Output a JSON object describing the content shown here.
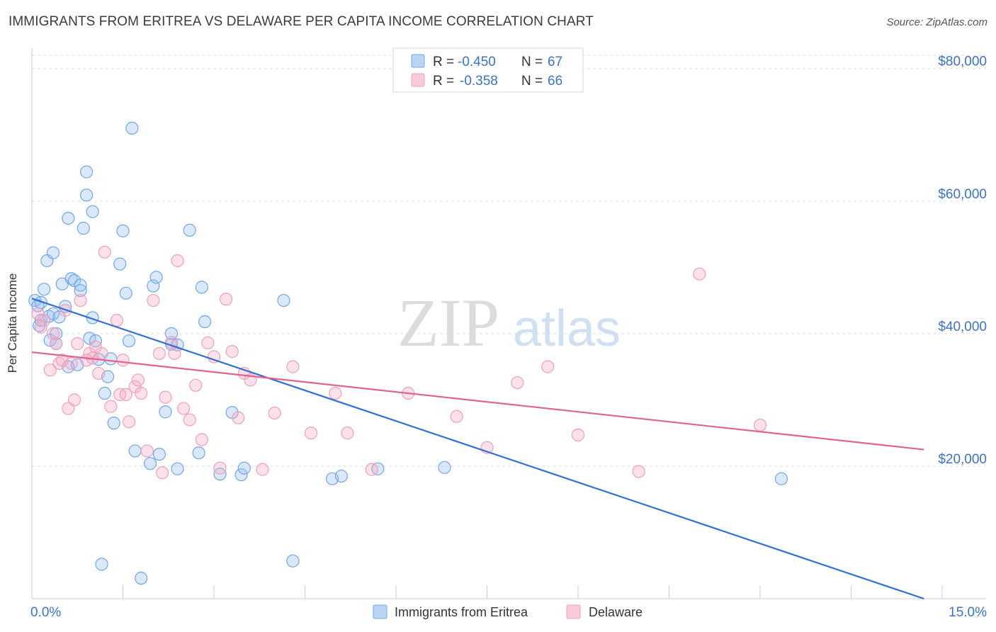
{
  "header": {
    "title": "IMMIGRANTS FROM ERITREA VS DELAWARE PER CAPITA INCOME CORRELATION CHART",
    "source": "Source: ZipAtlas.com"
  },
  "watermark": {
    "zip": "ZIP",
    "atlas": "atlas"
  },
  "legend_box": {
    "rows": [
      {
        "r_label": "R =",
        "r_value": "-0.450",
        "n_label": "N =",
        "n_value": "67",
        "color": "#6fa8ea"
      },
      {
        "r_label": "R =",
        "r_value": "-0.358",
        "n_label": "N =",
        "n_value": "66",
        "color": "#f0a0bb"
      }
    ]
  },
  "chart_data": {
    "type": "scatter",
    "title": "IMMIGRANTS FROM ERITREA VS DELAWARE PER CAPITA INCOME CORRELATION CHART",
    "xlabel": "",
    "ylabel": "Per Capita Income",
    "xlim": [
      0,
      15
    ],
    "ylim": [
      0,
      82000
    ],
    "x_tick_labels": [
      "0.0%",
      "15.0%"
    ],
    "y_ticks": [
      20000,
      40000,
      60000,
      80000
    ],
    "y_tick_labels": [
      "$20,000",
      "$40,000",
      "$60,000",
      "$80,000"
    ],
    "grid": true,
    "legend_position": "bottom-center",
    "series": [
      {
        "name": "Immigrants from Eritrea",
        "color": "#6fa8ea",
        "trend_color": "#3070d4",
        "trend": {
          "x": [
            0.0,
            14.7
          ],
          "y": [
            45300,
            0
          ]
        },
        "x": [
          0.05,
          0.1,
          0.12,
          0.15,
          0.2,
          0.25,
          0.28,
          0.3,
          0.35,
          0.35,
          0.4,
          0.4,
          0.45,
          0.5,
          0.55,
          0.6,
          0.6,
          0.65,
          0.7,
          0.75,
          0.8,
          0.8,
          0.85,
          0.9,
          0.9,
          0.95,
          1.0,
          1.0,
          1.05,
          1.1,
          1.15,
          1.2,
          1.25,
          1.3,
          1.35,
          1.45,
          1.5,
          1.55,
          1.6,
          1.65,
          1.7,
          1.8,
          1.95,
          2.0,
          2.05,
          2.1,
          2.2,
          2.3,
          2.3,
          2.4,
          2.4,
          2.6,
          2.75,
          2.8,
          2.85,
          3.1,
          3.3,
          3.45,
          3.5,
          4.15,
          4.3,
          4.95,
          5.1,
          5.7,
          6.8,
          12.35,
          0.15
        ],
        "y": [
          45000,
          44200,
          41200,
          42000,
          46700,
          51000,
          42600,
          39000,
          52200,
          43000,
          40000,
          38500,
          42500,
          47500,
          44100,
          57400,
          35000,
          48300,
          48000,
          35300,
          47300,
          46500,
          55900,
          64400,
          60900,
          39300,
          42400,
          58400,
          38900,
          36100,
          5200,
          31000,
          33500,
          36200,
          26500,
          50500,
          55500,
          46100,
          38900,
          71000,
          22300,
          3100,
          20400,
          47200,
          48500,
          21800,
          28200,
          38400,
          40000,
          19600,
          38300,
          55600,
          22000,
          47000,
          41800,
          18800,
          28100,
          18700,
          19700,
          45000,
          5700,
          18100,
          18500,
          19600,
          19800,
          18100,
          44700
        ]
      },
      {
        "name": "Delaware",
        "color": "#f0a0bb",
        "trend_color": "#e0628e",
        "trend": {
          "x": [
            0.0,
            14.7
          ],
          "y": [
            37200,
            22500
          ]
        },
        "x": [
          0.1,
          0.15,
          0.2,
          0.3,
          0.35,
          0.4,
          0.45,
          0.5,
          0.55,
          0.6,
          0.65,
          0.7,
          0.75,
          0.8,
          0.9,
          0.95,
          1.0,
          1.05,
          1.1,
          1.15,
          1.2,
          1.3,
          1.4,
          1.45,
          1.5,
          1.55,
          1.6,
          1.7,
          1.75,
          1.8,
          1.9,
          2.0,
          2.1,
          2.15,
          2.2,
          2.3,
          2.35,
          2.4,
          2.5,
          2.6,
          2.7,
          2.8,
          2.9,
          3.0,
          3.1,
          3.2,
          3.3,
          3.4,
          3.5,
          3.6,
          3.8,
          4.0,
          4.3,
          4.6,
          5.0,
          5.2,
          5.6,
          6.2,
          7.0,
          7.5,
          8.0,
          8.5,
          9.0,
          10.0,
          11.0,
          12.0
        ],
        "y": [
          43000,
          41000,
          42000,
          34500,
          40000,
          38500,
          35500,
          36000,
          43500,
          28700,
          35500,
          30000,
          38500,
          45000,
          36000,
          37000,
          36300,
          38000,
          34000,
          37000,
          52300,
          29000,
          42000,
          30800,
          36000,
          30800,
          26700,
          32000,
          33000,
          31000,
          22300,
          45000,
          37000,
          19000,
          30400,
          38700,
          37000,
          51000,
          28700,
          27000,
          32200,
          24000,
          38600,
          36500,
          19700,
          45200,
          37300,
          27300,
          34000,
          33000,
          19500,
          28000,
          35000,
          25000,
          31000,
          25000,
          19500,
          31000,
          27500,
          22800,
          32600,
          35000,
          24700,
          19200,
          49000,
          26200
        ]
      }
    ]
  },
  "bottom_legend": {
    "items": [
      {
        "label": "Immigrants from Eritrea",
        "color": "#6fa8ea"
      },
      {
        "label": "Delaware",
        "color": "#f0a0bb"
      }
    ]
  }
}
